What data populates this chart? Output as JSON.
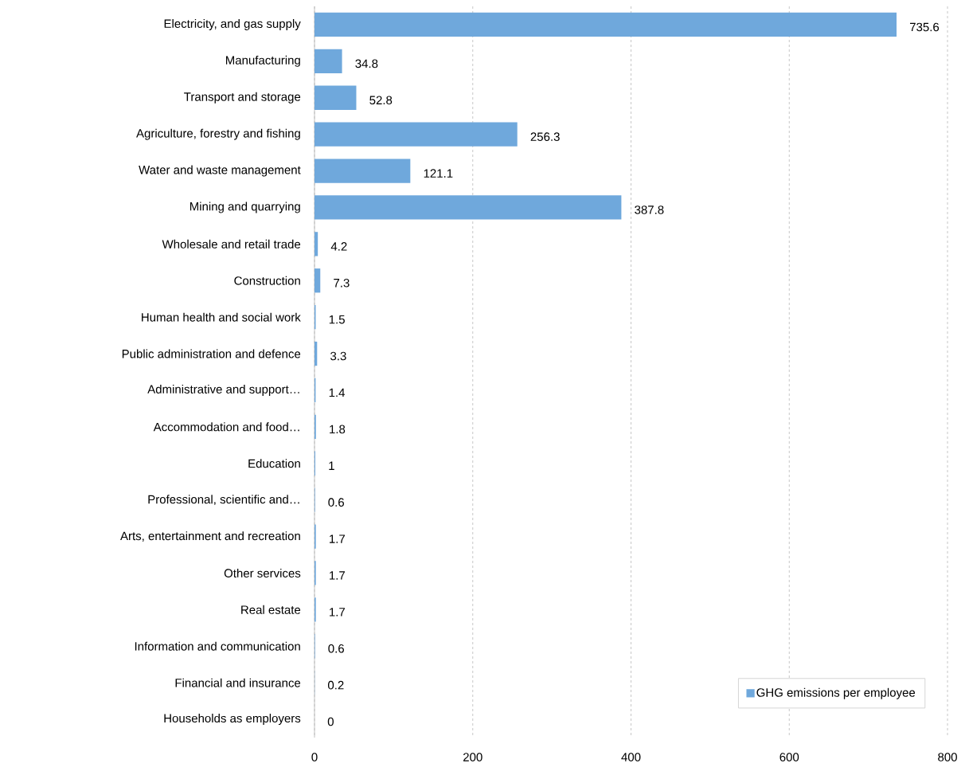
{
  "chart_data": {
    "type": "bar",
    "orientation": "horizontal",
    "categories": [
      "Electricity, and gas supply",
      "Manufacturing",
      "Transport and storage",
      "Agriculture, forestry and fishing",
      "Water and waste management",
      "Mining and quarrying",
      "Wholesale and retail trade",
      "Construction",
      "Human health and social work",
      "Public administration and defence",
      "Administrative and support…",
      "Accommodation and food…",
      "Education",
      "Professional, scientific and…",
      "Arts, entertainment and recreation",
      "Other services",
      "Real estate",
      "Information and communication",
      "Financial and insurance",
      "Households as employers"
    ],
    "series": [
      {
        "name": "GHG emissions per employee",
        "color": "#6fa8dc",
        "values": [
          735.6,
          34.8,
          52.8,
          256.3,
          121.1,
          387.8,
          4.2,
          7.3,
          1.5,
          3.3,
          1.4,
          1.8,
          1,
          0.6,
          1.7,
          1.7,
          1.7,
          0.6,
          0.2,
          0
        ]
      }
    ],
    "xlim": [
      0,
      800
    ],
    "xticks": [
      0,
      200,
      400,
      600,
      800
    ],
    "grid": "x",
    "legend": "bottom right",
    "data_labels": true
  }
}
